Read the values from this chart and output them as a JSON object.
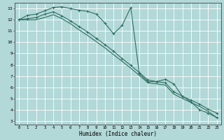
{
  "xlabel": "Humidex (Indice chaleur)",
  "background_color": "#b2d8d8",
  "grid_color": "#ffffff",
  "line_color": "#2e6e60",
  "xlim": [
    -0.5,
    23.5
  ],
  "ylim": [
    2.7,
    13.5
  ],
  "yticks": [
    3,
    4,
    5,
    6,
    7,
    8,
    9,
    10,
    11,
    12,
    13
  ],
  "xticks": [
    0,
    1,
    2,
    3,
    4,
    5,
    6,
    7,
    8,
    9,
    10,
    11,
    12,
    13,
    14,
    15,
    16,
    17,
    18,
    19,
    20,
    21,
    22,
    23
  ],
  "line1_x": [
    0,
    1,
    2,
    3,
    4,
    5,
    6,
    7,
    8,
    9,
    10,
    11,
    12,
    13,
    14,
    15,
    16,
    17,
    18,
    19,
    20,
    21,
    22,
    23
  ],
  "line1_y": [
    12.0,
    12.4,
    12.5,
    12.8,
    13.1,
    13.15,
    13.0,
    12.85,
    12.75,
    12.5,
    11.7,
    10.75,
    11.5,
    13.1,
    7.2,
    6.5,
    6.5,
    6.7,
    6.3,
    5.2,
    4.7,
    4.0,
    3.7,
    3.3
  ],
  "line2_x": [
    0,
    1,
    2,
    3,
    4,
    5,
    6,
    7,
    8,
    9,
    10,
    11,
    12,
    13,
    14,
    15,
    16,
    17,
    18,
    19,
    20,
    21,
    22,
    23
  ],
  "line2_y": [
    12.0,
    12.1,
    12.2,
    12.5,
    12.7,
    12.35,
    11.9,
    11.4,
    10.9,
    10.35,
    9.8,
    9.2,
    8.55,
    7.95,
    7.3,
    6.65,
    6.5,
    6.4,
    5.6,
    5.2,
    4.85,
    4.5,
    4.05,
    3.7
  ],
  "line3_x": [
    0,
    1,
    2,
    3,
    4,
    5,
    6,
    7,
    8,
    9,
    10,
    11,
    12,
    13,
    14,
    15,
    16,
    17,
    18,
    19,
    20,
    21,
    22,
    23
  ],
  "line3_y": [
    12.0,
    12.0,
    12.0,
    12.2,
    12.45,
    12.1,
    11.65,
    11.1,
    10.6,
    10.05,
    9.5,
    8.9,
    8.3,
    7.7,
    7.05,
    6.4,
    6.3,
    6.2,
    5.4,
    5.0,
    4.65,
    4.3,
    3.85,
    3.3
  ],
  "line1_marker": true,
  "line2_marker": true,
  "line3_marker": false
}
